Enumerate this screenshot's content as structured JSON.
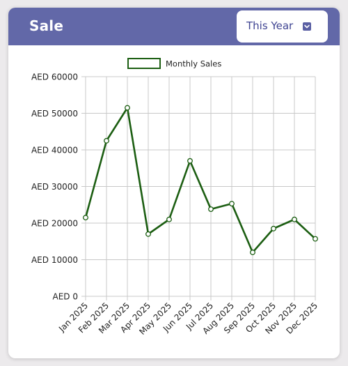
{
  "header": {
    "title": "Sale",
    "range_select": {
      "selected": "This Year",
      "icon": "chevron-down-icon"
    }
  },
  "colors": {
    "header_bg": "#6268a8",
    "series_line": "#1c5e12",
    "grid": "#c8c8c8"
  },
  "chart_data": {
    "type": "line",
    "categories": [
      "Jan 2025",
      "Feb 2025",
      "Mar 2025",
      "Apr 2025",
      "May 2025",
      "Jun 2025",
      "Jul 2025",
      "Aug 2025",
      "Sep 2025",
      "Oct 2025",
      "Nov 2025",
      "Dec 2025"
    ],
    "series": [
      {
        "name": "Monthly Sales",
        "values": [
          21500,
          42500,
          51500,
          17000,
          21000,
          37000,
          23800,
          25300,
          12000,
          18500,
          21000,
          15700
        ]
      }
    ],
    "y_ticks": [
      "AED 0",
      "AED 10000",
      "AED 20000",
      "AED 30000",
      "AED 40000",
      "AED 50000",
      "AED 60000"
    ],
    "ylim": [
      0,
      60000
    ],
    "grid": true,
    "legend": "top-center"
  }
}
